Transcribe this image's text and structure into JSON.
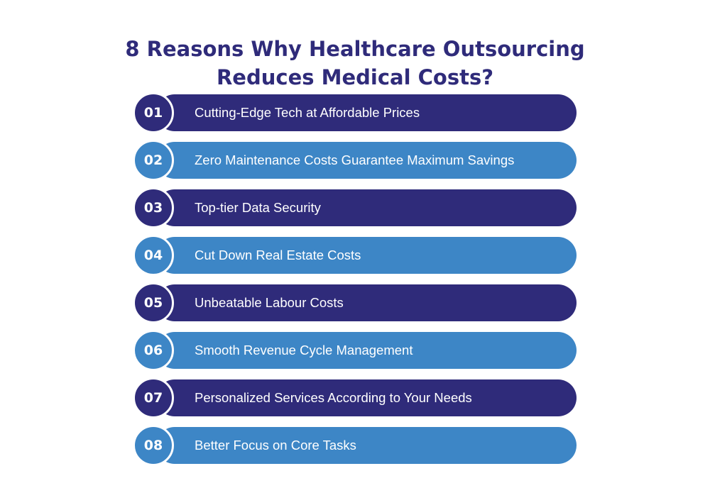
{
  "title": {
    "line1": "8 Reasons Why Healthcare Outsourcing",
    "line2": "Reduces Medical Costs?"
  },
  "colors": {
    "dark": "#2f2b7a",
    "light": "#3d86c6"
  },
  "items": [
    {
      "number": "01",
      "label": "Cutting-Edge Tech at Affordable Prices"
    },
    {
      "number": "02",
      "label": "Zero Maintenance Costs Guarantee Maximum Savings"
    },
    {
      "number": "03",
      "label": "Top-tier Data Security"
    },
    {
      "number": "04",
      "label": "Cut Down Real Estate Costs"
    },
    {
      "number": "05",
      "label": "Unbeatable Labour Costs"
    },
    {
      "number": "06",
      "label": "Smooth Revenue Cycle Management"
    },
    {
      "number": "07",
      "label": "Personalized Services According to Your Needs"
    },
    {
      "number": "08",
      "label": "Better Focus on Core Tasks"
    }
  ]
}
